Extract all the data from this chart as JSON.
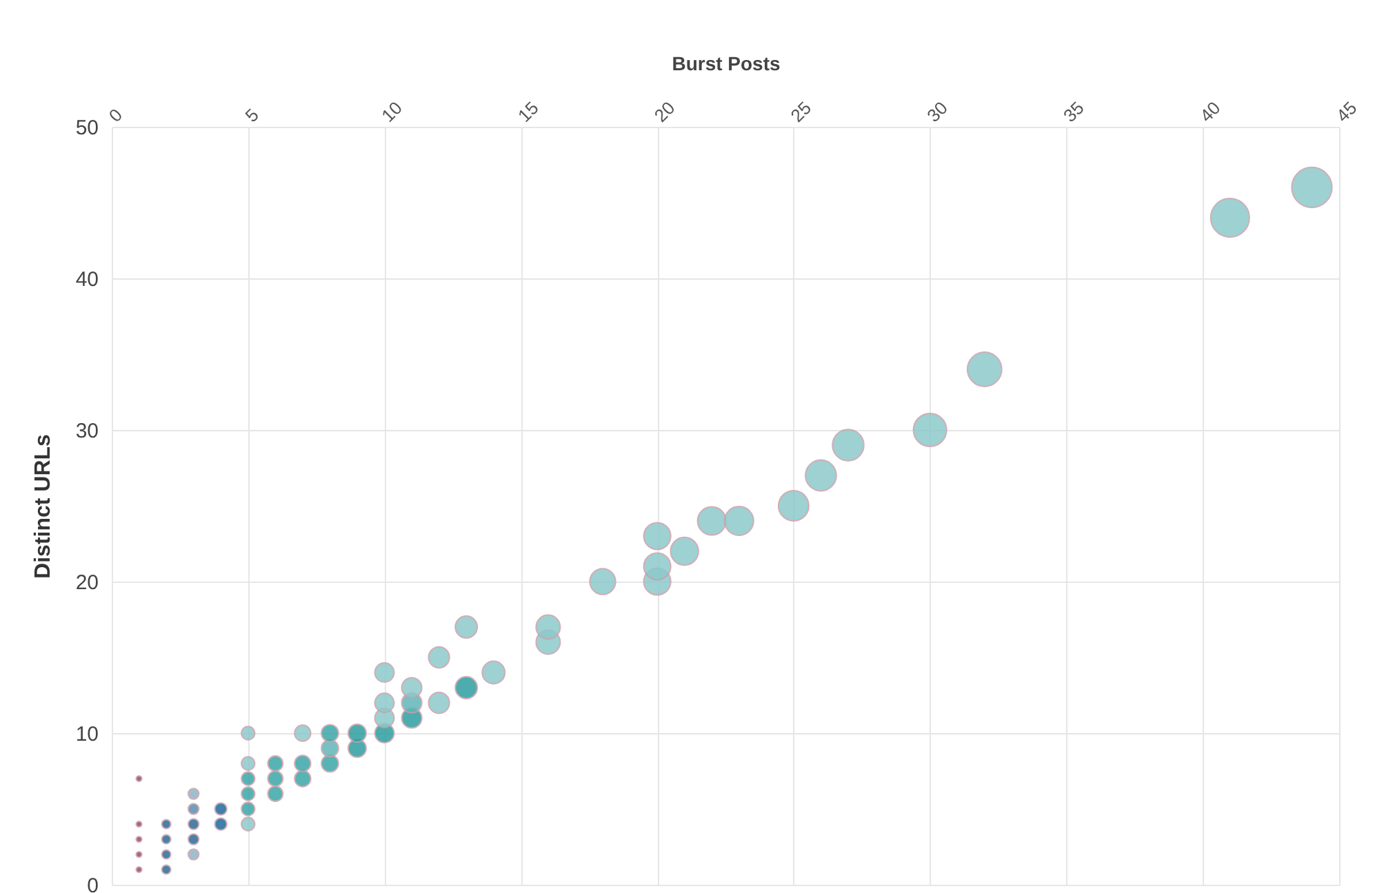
{
  "chart_data": {
    "type": "bubble",
    "xlabel": "Burst Posts",
    "ylabel": "Distinct URLs",
    "xlim": [
      0,
      45
    ],
    "xticks": [
      0,
      5,
      10,
      15,
      20,
      25,
      30,
      35,
      40,
      45
    ],
    "ylim": [
      0,
      50
    ],
    "yticks": [
      0,
      10,
      20,
      30,
      40,
      50
    ],
    "grid": true,
    "x": [
      1,
      1,
      1,
      1,
      1,
      2,
      2,
      2,
      2,
      3,
      3,
      3,
      3,
      3,
      4,
      4,
      5,
      5,
      5,
      5,
      5,
      5,
      6,
      6,
      6,
      7,
      7,
      7,
      8,
      8,
      8,
      9,
      9,
      10,
      10,
      10,
      10,
      11,
      11,
      11,
      12,
      12,
      13,
      13,
      14,
      16,
      16,
      18,
      20,
      20,
      20,
      21,
      22,
      23,
      25,
      26,
      27,
      30,
      32,
      41,
      44
    ],
    "values": [
      1,
      2,
      3,
      4,
      7,
      1,
      2,
      3,
      4,
      2,
      3,
      4,
      5,
      6,
      4,
      5,
      4,
      5,
      6,
      7,
      8,
      10,
      6,
      7,
      8,
      7,
      8,
      10,
      8,
      9,
      10,
      9,
      10,
      10,
      11,
      12,
      14,
      11,
      12,
      13,
      12,
      15,
      13,
      17,
      14,
      16,
      17,
      20,
      20,
      21,
      23,
      22,
      24,
      24,
      25,
      27,
      29,
      30,
      34,
      44,
      46
    ],
    "sizes": [
      0.02,
      0.02,
      0.02,
      0.02,
      0.02,
      0.05,
      0.05,
      0.05,
      0.05,
      0.07,
      0.07,
      0.07,
      0.07,
      0.07,
      0.09,
      0.09,
      0.11,
      0.11,
      0.11,
      0.11,
      0.11,
      0.11,
      0.14,
      0.14,
      0.14,
      0.16,
      0.16,
      0.16,
      0.18,
      0.18,
      0.18,
      0.2,
      0.2,
      0.23,
      0.23,
      0.23,
      0.23,
      0.25,
      0.25,
      0.25,
      0.27,
      0.27,
      0.3,
      0.3,
      0.32,
      0.36,
      0.36,
      0.41,
      0.45,
      0.45,
      0.45,
      0.48,
      0.5,
      0.52,
      0.57,
      0.59,
      0.61,
      0.68,
      0.73,
      0.93,
      1
    ],
    "colors": [
      "#9c4a72",
      "#9c4a72",
      "#9c4a72",
      "#9c4a72",
      "#9c4a72",
      "#2d6a96",
      "#2d6a96",
      "#2d6a96",
      "#2d6a96",
      "#8fb5c8",
      "#2d6a96",
      "#2d6a96",
      "#5a8fb0",
      "#8fb5c8",
      "#1f6a9c",
      "#1f6a9c",
      "#8cc9cb",
      "#3aa6a8",
      "#3aa6a8",
      "#3aa6a8",
      "#8cc9cb",
      "#8cc9cb",
      "#3aa6a8",
      "#3aa6a8",
      "#3aa6a8",
      "#3aa6a8",
      "#3aa6a8",
      "#8cc9cb",
      "#3aa6a8",
      "#62b6b8",
      "#3aa6a8",
      "#2f9ea0",
      "#2f9ea0",
      "#2f9ea0",
      "#8cc9cb",
      "#8cc9cb",
      "#8cc9cb",
      "#2f9ea0",
      "#62b6b8",
      "#8cc9cb",
      "#8cc9cb",
      "#8cc9cb",
      "#2f9ea0",
      "#8cc9cb",
      "#8cc9cb",
      "#8cc9cb",
      "#8cc9cb",
      "#8cc9cb",
      "#8cc9cb",
      "#8cc9cb",
      "#8cc9cb",
      "#8cc9cb",
      "#8cc9cb",
      "#8cc9cb",
      "#8cc9cb",
      "#8cc9cb",
      "#8cc9cb",
      "#8cc9cb",
      "#8cc9cb",
      "#8cc9cb",
      "#8cc9cb"
    ]
  }
}
